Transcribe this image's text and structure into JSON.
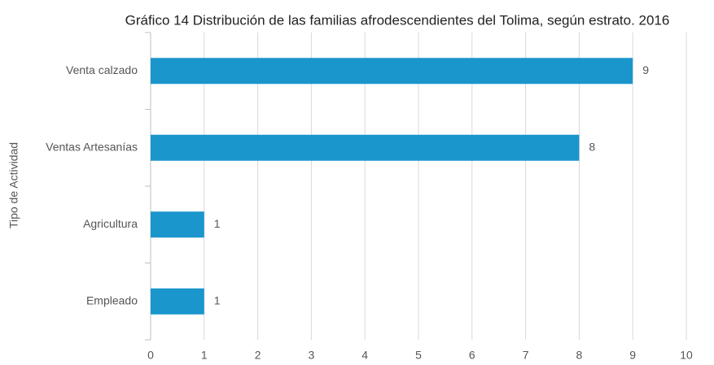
{
  "chart_data": {
    "type": "bar",
    "orientation": "horizontal",
    "title": "Gráfico 14 Distribución de las familias afrodescendientes del Tolima, según estrato. 2016",
    "y_label": "Tipo de Actividad",
    "categories": [
      "Venta calzado",
      "Ventas Artesanías",
      "Agricultura",
      "Empleado"
    ],
    "values": [
      9,
      8,
      1,
      1
    ],
    "color": "#1a96cc",
    "xlim": [
      0,
      10
    ],
    "xticks": [
      0,
      1,
      2,
      3,
      4,
      5,
      6,
      7,
      8,
      9,
      10
    ],
    "grid": true
  }
}
